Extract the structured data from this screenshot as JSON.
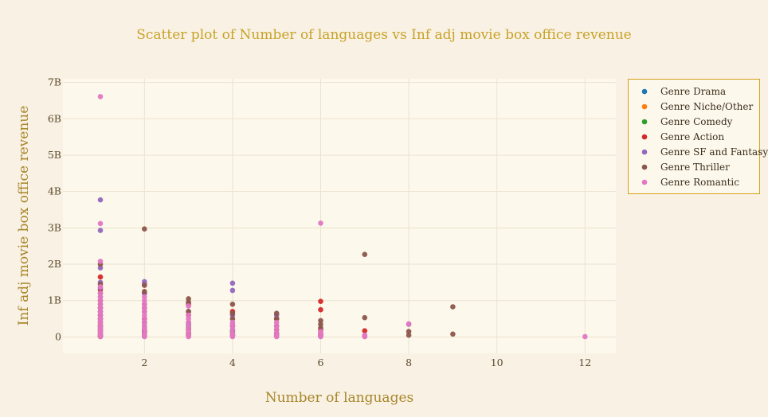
{
  "chart_data": {
    "type": "scatter",
    "title": "Scatter plot of Number of languages vs Inf adj movie box office revenue",
    "xlabel": "Number of languages",
    "ylabel": "Inf adj movie box office revenue",
    "xlim": [
      0.15,
      12.7
    ],
    "ylim": [
      -0.45,
      7.1
    ],
    "x_ticks": [
      2,
      4,
      6,
      8,
      10,
      12
    ],
    "x_tick_labels": [
      "2",
      "4",
      "6",
      "8",
      "10",
      "12"
    ],
    "y_ticks": [
      0,
      1,
      2,
      3,
      4,
      5,
      6,
      7
    ],
    "y_tick_labels": [
      "0",
      "1B",
      "2B",
      "3B",
      "4B",
      "5B",
      "6B",
      "7B"
    ],
    "y_unit": "billions",
    "grid": true,
    "legend_position": "top-right",
    "series": [
      {
        "name": "Genre Drama",
        "color": "#1f77b4",
        "x": [
          1,
          1,
          1,
          1,
          1,
          1,
          2,
          2,
          2,
          2,
          3,
          3,
          3,
          4,
          4,
          5,
          5,
          6,
          7
        ],
        "y": [
          0.02,
          0.1,
          0.25,
          0.4,
          0.6,
          0.8,
          0.03,
          0.15,
          0.3,
          0.5,
          0.05,
          0.2,
          0.35,
          0.05,
          0.2,
          0.03,
          0.1,
          0.05,
          0.02
        ]
      },
      {
        "name": "Genre Niche/Other",
        "color": "#ff7f0e",
        "x": [
          1,
          1,
          1,
          1,
          2,
          2,
          2,
          3,
          3,
          4,
          5,
          6
        ],
        "y": [
          0.01,
          0.08,
          0.2,
          0.35,
          0.02,
          0.1,
          0.2,
          0.02,
          0.1,
          0.05,
          0.02,
          0.03
        ]
      },
      {
        "name": "Genre Comedy",
        "color": "#2ca02c",
        "x": [
          1,
          1,
          1,
          1,
          1,
          2,
          2,
          2,
          3,
          3,
          4,
          4,
          5,
          6
        ],
        "y": [
          0.02,
          0.15,
          0.3,
          0.5,
          0.7,
          0.04,
          0.2,
          0.4,
          0.05,
          0.25,
          0.04,
          0.15,
          0.05,
          0.04
        ]
      },
      {
        "name": "Genre Action",
        "color": "#d62728",
        "x": [
          1,
          1,
          1,
          1,
          1,
          1,
          1,
          2,
          2,
          2,
          2,
          3,
          3,
          3,
          4,
          4,
          5,
          5,
          6,
          6,
          6,
          6,
          7
        ],
        "y": [
          1.65,
          1.3,
          1.0,
          0.8,
          0.6,
          0.3,
          0.05,
          1.2,
          0.8,
          0.5,
          0.1,
          0.9,
          0.6,
          0.2,
          0.7,
          0.3,
          0.5,
          0.2,
          0.98,
          0.75,
          0.2,
          0.05,
          0.17
        ]
      },
      {
        "name": "Genre SF and Fantasy",
        "color": "#9467bd",
        "x": [
          1,
          1,
          1,
          1,
          1,
          1,
          1,
          1,
          2,
          2,
          2,
          2,
          2,
          3,
          3,
          3,
          4,
          4,
          4,
          4,
          5,
          5,
          5,
          6,
          6,
          7,
          8
        ],
        "y": [
          3.77,
          2.93,
          1.9,
          1.5,
          1.35,
          1.1,
          0.7,
          0.3,
          1.52,
          1.45,
          1.2,
          0.8,
          0.4,
          0.95,
          0.7,
          0.3,
          1.48,
          1.28,
          0.6,
          0.2,
          0.6,
          0.3,
          0.1,
          0.1,
          0.02,
          0.02,
          0.35
        ]
      },
      {
        "name": "Genre Thriller",
        "color": "#8c564b",
        "x": [
          1,
          1,
          1,
          1,
          1,
          1,
          2,
          2,
          2,
          2,
          2,
          2,
          2,
          3,
          3,
          3,
          3,
          3,
          4,
          4,
          4,
          4,
          4,
          5,
          5,
          5,
          5,
          6,
          6,
          6,
          6,
          7,
          7,
          8,
          8,
          9,
          9
        ],
        "y": [
          2.0,
          1.45,
          1.2,
          0.9,
          0.5,
          0.2,
          2.97,
          1.42,
          1.25,
          0.9,
          0.7,
          0.4,
          0.1,
          1.05,
          0.95,
          0.7,
          0.4,
          0.1,
          0.9,
          0.65,
          0.5,
          0.3,
          0.1,
          0.65,
          0.5,
          0.3,
          0.1,
          0.45,
          0.35,
          0.25,
          0.1,
          2.27,
          0.53,
          0.15,
          0.05,
          0.83,
          0.08
        ]
      },
      {
        "name": "Genre Romantic",
        "color": "#e377c2",
        "x": [
          1,
          1,
          1,
          1,
          1,
          1,
          1,
          1,
          1,
          1,
          1,
          1,
          1,
          1,
          1,
          1,
          1,
          1,
          1,
          1,
          1,
          2,
          2,
          2,
          2,
          2,
          2,
          2,
          2,
          2,
          2,
          2,
          2,
          2,
          2,
          3,
          3,
          3,
          3,
          3,
          3,
          3,
          3,
          3,
          4,
          4,
          4,
          4,
          4,
          4,
          4,
          5,
          5,
          5,
          5,
          5,
          5,
          6,
          6,
          6,
          6,
          6,
          7,
          7,
          8,
          12
        ],
        "y": [
          6.61,
          3.12,
          2.08,
          1.38,
          1.2,
          1.1,
          1.0,
          0.9,
          0.8,
          0.7,
          0.6,
          0.5,
          0.45,
          0.4,
          0.3,
          0.25,
          0.2,
          0.15,
          0.1,
          0.05,
          0.01,
          1.1,
          1.0,
          0.9,
          0.8,
          0.7,
          0.6,
          0.5,
          0.4,
          0.3,
          0.25,
          0.2,
          0.1,
          0.05,
          0.01,
          0.85,
          0.6,
          0.5,
          0.4,
          0.3,
          0.2,
          0.15,
          0.05,
          0.01,
          0.4,
          0.35,
          0.3,
          0.2,
          0.1,
          0.05,
          0.01,
          0.4,
          0.3,
          0.2,
          0.1,
          0.05,
          0.01,
          3.13,
          0.15,
          0.1,
          0.05,
          0.01,
          0.05,
          0.01,
          0.36,
          0.01
        ]
      }
    ]
  }
}
